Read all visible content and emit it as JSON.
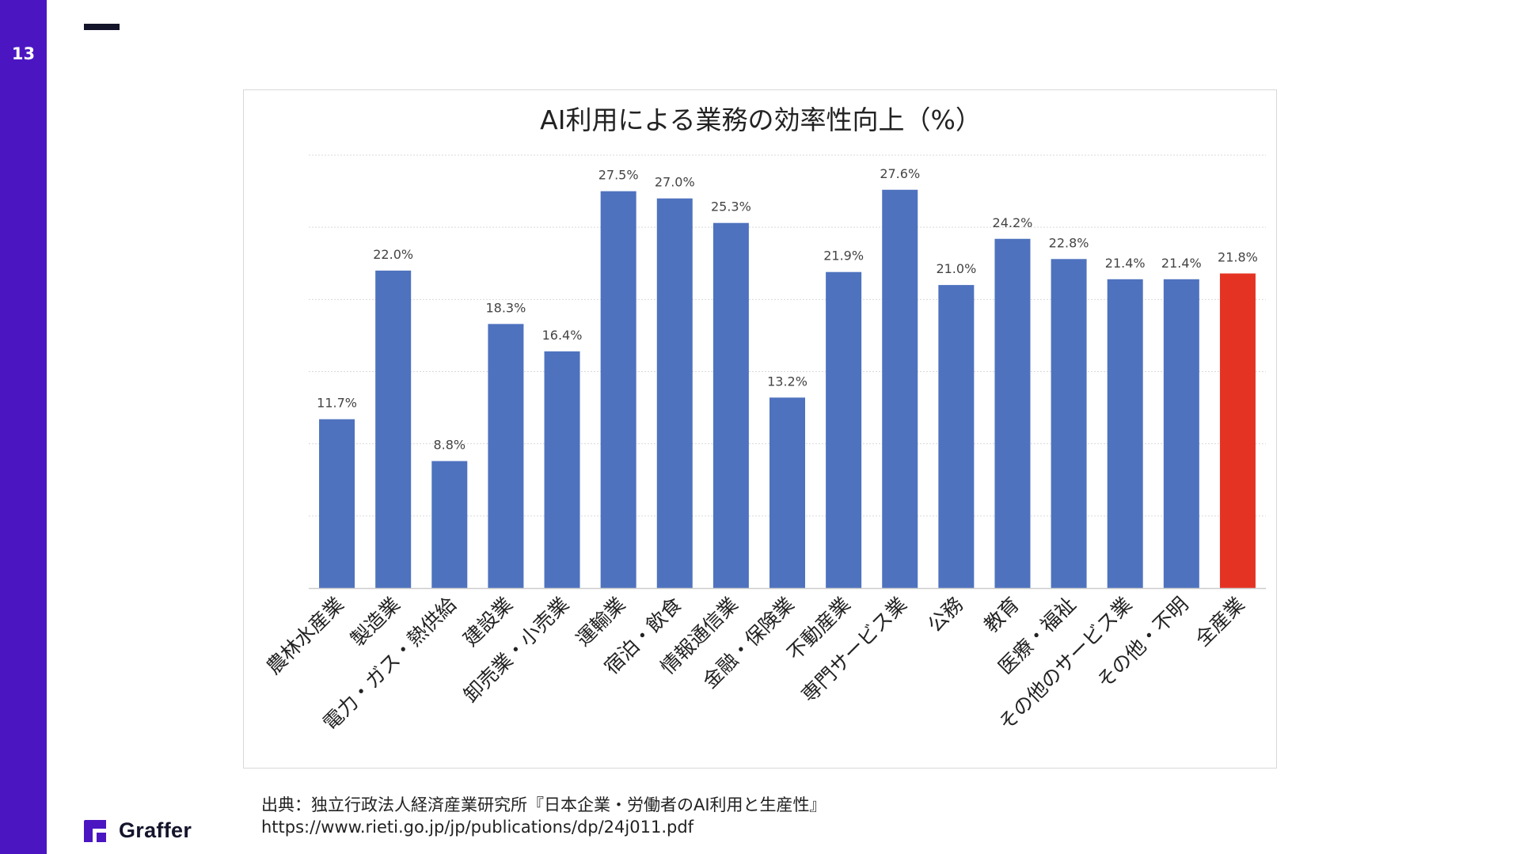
{
  "slide": {
    "page_number": "13"
  },
  "brand": {
    "name": "Graffer",
    "colors": {
      "sidebar": "#4b16c2",
      "dark": "#14142b"
    }
  },
  "source": {
    "line1": "出典：独立行政法人経済産業研究所『日本企業・労働者のAI利用と生産性』",
    "line2": "https://www.rieti.go.jp/jp/publications/dp/24j011.pdf"
  },
  "chart_data": {
    "type": "bar",
    "title": "AI利用による業務の効率性向上（%）",
    "categories": [
      "農林水産業",
      "製造業",
      "電力・ガス・熱供給",
      "建設業",
      "卸売業・小売業",
      "運輸業",
      "宿泊・飲食",
      "情報通信業",
      "金融・保険業",
      "不動産業",
      "専門サービス業",
      "公務",
      "教育",
      "医療・福祉",
      "その他のサービス業",
      "その他・不明",
      "全産業"
    ],
    "values": [
      11.7,
      22.0,
      8.8,
      18.3,
      16.4,
      27.5,
      27.0,
      25.3,
      13.2,
      21.9,
      27.6,
      21.0,
      24.2,
      22.8,
      21.4,
      21.4,
      21.8
    ],
    "value_labels": [
      "11.7%",
      "22.0%",
      "8.8%",
      "18.3%",
      "16.4%",
      "27.5%",
      "27.0%",
      "25.3%",
      "13.2%",
      "21.9%",
      "27.6%",
      "21.0%",
      "24.2%",
      "22.8%",
      "21.4%",
      "21.4%",
      "21.8%"
    ],
    "ylim": [
      0,
      30
    ],
    "grid": true,
    "bar_color": "#4e72be",
    "highlight_color": "#e53323",
    "highlight_index": 16
  }
}
